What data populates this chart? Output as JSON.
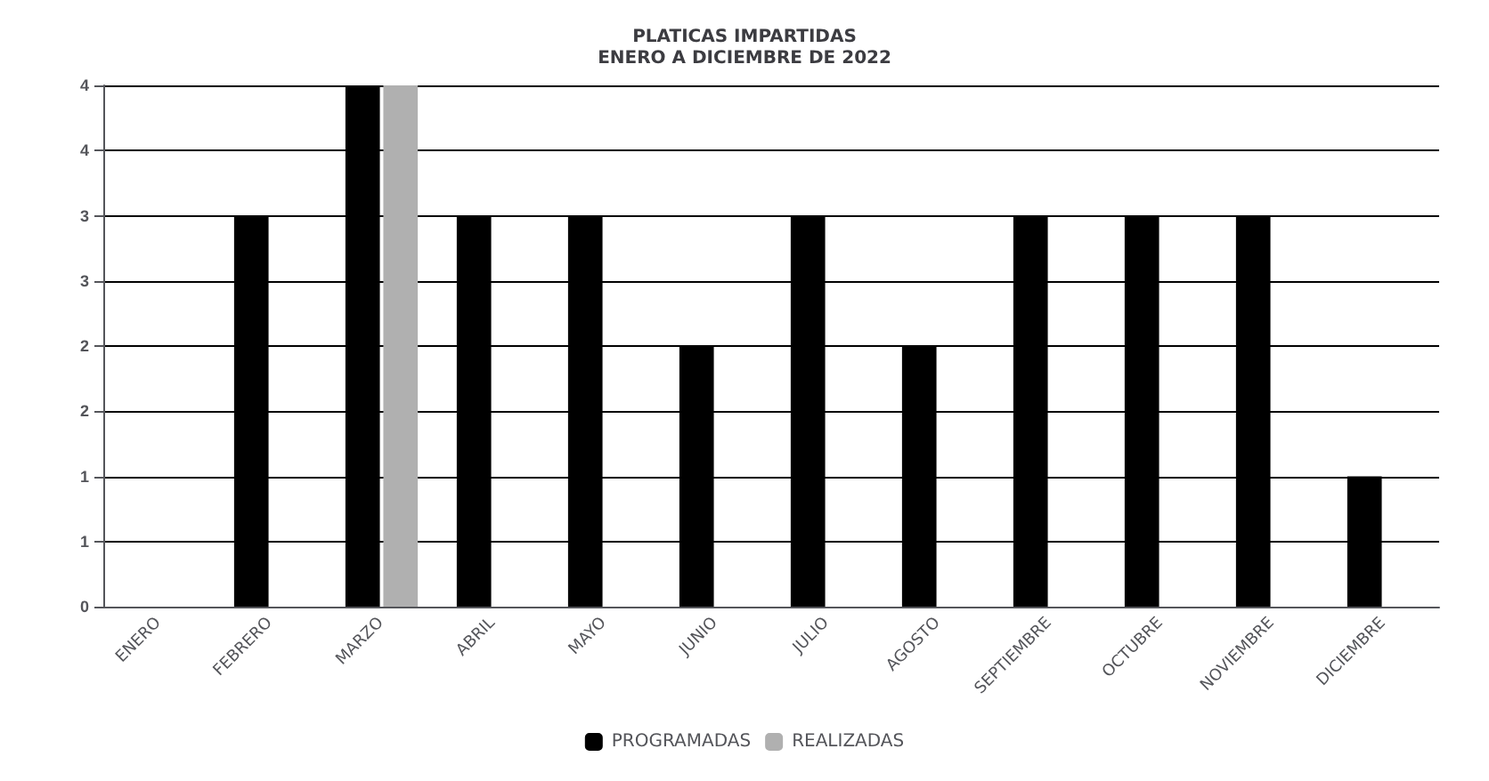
{
  "chart_data": {
    "type": "bar",
    "title": "PLATICAS IMPARTIDAS\nENERO A DICIEMBRE DE 2022",
    "categories": [
      "ENERO",
      "FEBRERO",
      "MARZO",
      "ABRIL",
      "MAYO",
      "JUNIO",
      "JULIO",
      "AGOSTO",
      "SEPTIEMBRE",
      "OCTUBRE",
      "NOVIEMBRE",
      "DICIEMBRE"
    ],
    "series": [
      {
        "name": "PROGRAMADAS",
        "color": "#000000",
        "values": [
          0,
          3,
          4,
          3,
          3,
          2,
          3,
          2,
          3,
          3,
          3,
          1
        ]
      },
      {
        "name": "REALIZADAS",
        "color": "#b0b0b0",
        "values": [
          0,
          0,
          4,
          0,
          0,
          0,
          0,
          0,
          0,
          0,
          0,
          0
        ]
      }
    ],
    "ylim": [
      0,
      4
    ],
    "yticks": [
      0,
      {
        "value": 0.5,
        "label": "1"
      },
      1,
      {
        "value": 1.5,
        "label": "2"
      },
      2,
      {
        "value": 2.5,
        "label": "3"
      },
      3,
      {
        "value": 3.5,
        "label": "4"
      },
      4
    ],
    "grid": "y",
    "legend": "bottom"
  }
}
